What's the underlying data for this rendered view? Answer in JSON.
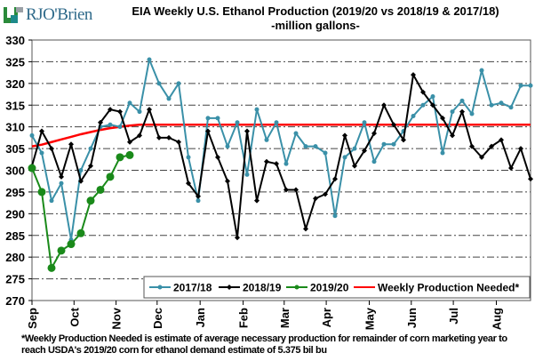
{
  "logo": {
    "text": "RJO'Brien"
  },
  "title_line1": "EIA Weekly U.S. Ethanol Production (2019/20 vs 2018/19  & 2017/18)",
  "title_line2": "-million  gallons-",
  "footnote_line1": "*Weekly Production Needed is estimate of average necessary production for remainder of corn marketing year to",
  "footnote_line2": "reach USDA's 2019/20 corn for ethanol demand estimate of 5.375 bil bu",
  "chart_data": {
    "type": "line",
    "title": "EIA Weekly U.S. Ethanol Production (2019/20 vs 2018/19 & 2017/18)",
    "subtitle": "-million gallons-",
    "xlabel": "",
    "ylabel": "",
    "ylim": [
      270,
      330
    ],
    "yticks": [
      270,
      275,
      280,
      285,
      290,
      295,
      300,
      305,
      310,
      315,
      320,
      325,
      330
    ],
    "month_ticks": [
      "Sep",
      "Oct",
      "Nov",
      "Dec",
      "Jan",
      "Feb",
      "Mar",
      "Apr",
      "May",
      "Jun",
      "Jul",
      "Aug"
    ],
    "month_week_index": [
      0,
      4.3,
      8.6,
      12.8,
      17.2,
      21.6,
      25.8,
      30.1,
      34.5,
      38.8,
      43.1,
      47.5
    ],
    "weeks": 52,
    "grid": true,
    "legend_position": "bottom-right",
    "series": [
      {
        "name": "2017/18",
        "color": "#3a90a8",
        "marker": "circle",
        "values": [
          308,
          304,
          293,
          297,
          284,
          300,
          305,
          310,
          310.5,
          310,
          315.5,
          313.5,
          325.5,
          320,
          316.5,
          320,
          303,
          293,
          312,
          312,
          305.5,
          311,
          299,
          314,
          307,
          311,
          301.5,
          308.5,
          305.5,
          305.5,
          304,
          289.5,
          303,
          305,
          311,
          302,
          306,
          306,
          309,
          312.5,
          315,
          317,
          304,
          313.5,
          316,
          313,
          323,
          315,
          315.5,
          314.5,
          319.5,
          319.5
        ]
      },
      {
        "name": "2018/19",
        "color": "#000000",
        "marker": "diamond",
        "values": [
          301,
          309,
          305,
          298.5,
          306,
          297.5,
          301,
          311,
          314,
          313.5,
          306.5,
          308,
          314,
          307.5,
          307.5,
          306.5,
          297,
          294,
          309,
          303,
          297.5,
          284.5,
          309,
          293,
          302,
          301.5,
          295.5,
          295.5,
          286.5,
          293.5,
          294.5,
          298,
          308,
          301,
          304.5,
          308.5,
          315,
          310.5,
          307,
          322,
          318,
          315,
          312,
          308,
          313.5,
          305.5,
          303,
          305.5,
          307,
          300.5,
          305,
          298
        ]
      },
      {
        "name": "2019/20",
        "color": "#1a8a1a",
        "marker": "circle-large",
        "values": [
          300.5,
          295,
          277.5,
          281.5,
          283,
          285.5,
          293,
          295.5,
          298.5,
          303,
          303.5
        ]
      },
      {
        "name": "Weekly Production Needed*",
        "color": "#ff0000",
        "marker": "none",
        "values": [
          305.5,
          305.9,
          306.5,
          307.1,
          307.7,
          308.3,
          308.8,
          309.3,
          309.7,
          310.0,
          310.3,
          310.5,
          310.5,
          310.5,
          310.5,
          310.5,
          310.5,
          310.5,
          310.5,
          310.5,
          310.5,
          310.5,
          310.5,
          310.5,
          310.5,
          310.5,
          310.5,
          310.5,
          310.5,
          310.5,
          310.5,
          310.5,
          310.5,
          310.5,
          310.5,
          310.5,
          310.5,
          310.5,
          310.5,
          310.5,
          310.5,
          310.5,
          310.5,
          310.5,
          310.5,
          310.5,
          310.5,
          310.5,
          310.5,
          310.5,
          310.5,
          310.5
        ]
      }
    ]
  }
}
